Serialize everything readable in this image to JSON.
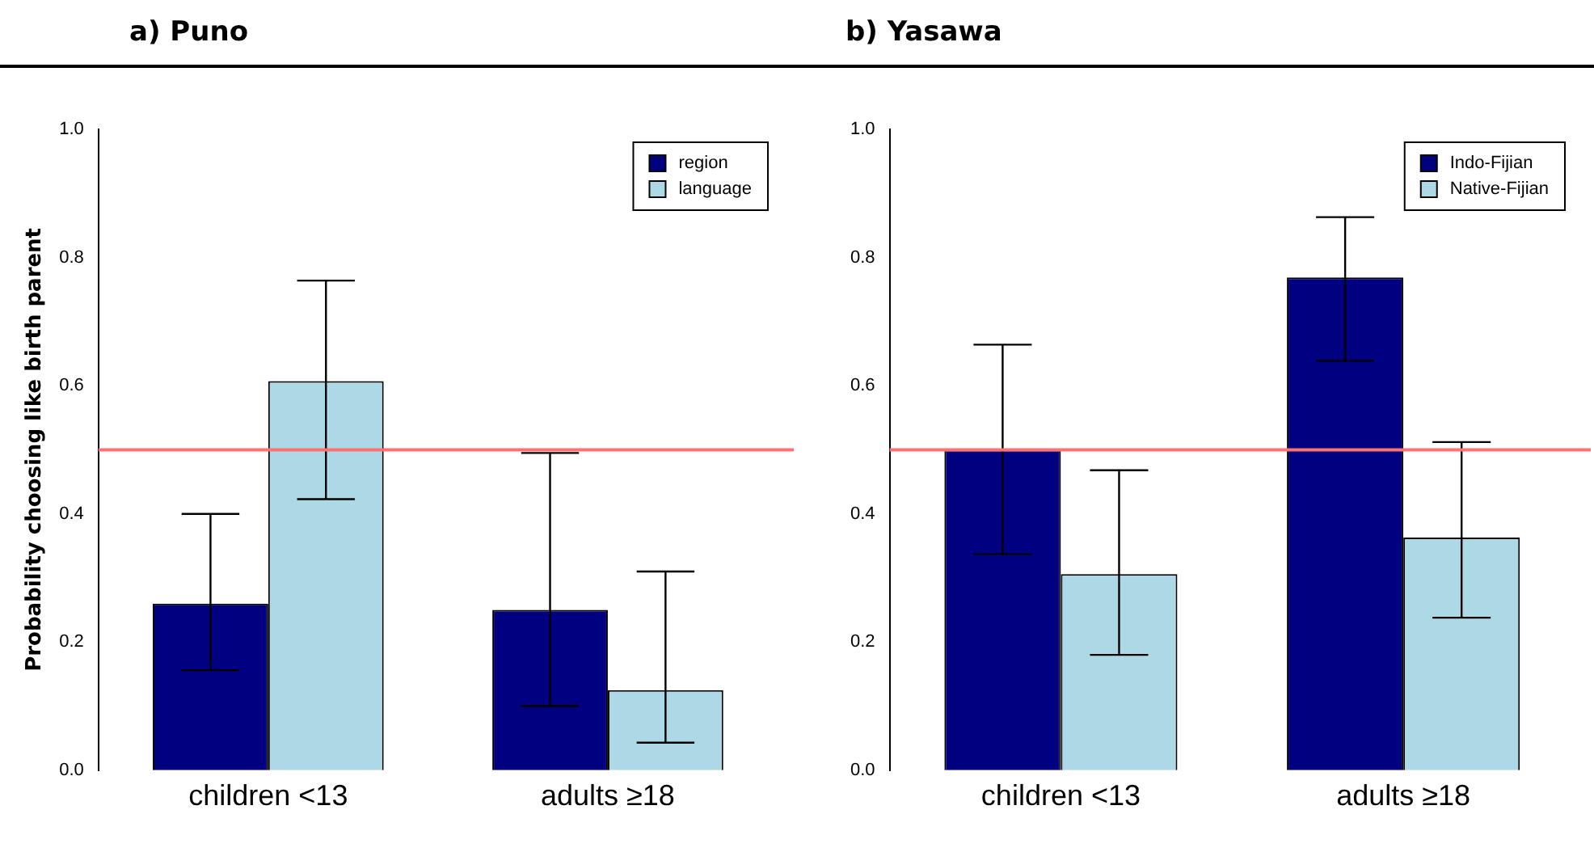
{
  "chart_data": [
    {
      "type": "bar",
      "title": "a) Puno",
      "ylabel": "Probability choosing like birth parent",
      "categories": [
        "children <13",
        "adults ≥18"
      ],
      "series": [
        {
          "name": "region",
          "color": "#000080",
          "values": [
            0.26,
            0.25
          ],
          "errors": [
            [
              0.156,
              0.4
            ],
            [
              0.1,
              0.495
            ]
          ]
        },
        {
          "name": "language",
          "color": "#add8e6",
          "values": [
            0.607,
            0.125
          ],
          "errors": [
            [
              0.423,
              0.764
            ],
            [
              0.043,
              0.31
            ]
          ]
        }
      ],
      "ylim": [
        0,
        1
      ],
      "yticks": [
        "0.0",
        0.2,
        0.4,
        0.6,
        0.8,
        "1.0"
      ],
      "ref_lines": [
        {
          "axis": "y",
          "value": 0.5,
          "color": "#ff7070"
        }
      ],
      "legend": "top right",
      "grid": false
    },
    {
      "type": "bar",
      "title": "b) Yasawa",
      "categories": [
        "children <13",
        "adults ≥18"
      ],
      "series": [
        {
          "name": "Indo-Fijian",
          "color": "#000080",
          "values": [
            0.5,
            0.769
          ],
          "errors": [
            [
              0.337,
              0.664
            ],
            [
              0.639,
              0.863
            ]
          ]
        },
        {
          "name": "Native-Fijian",
          "color": "#add8e6",
          "values": [
            0.306,
            0.363
          ],
          "errors": [
            [
              0.18,
              0.468
            ],
            [
              0.238,
              0.512
            ]
          ]
        }
      ],
      "ylim": [
        0,
        1
      ],
      "yticks": [
        "0.0",
        0.2,
        0.4,
        0.6,
        0.8,
        "1.0"
      ],
      "ref_lines": [
        {
          "axis": "y",
          "value": 0.5,
          "color": "#ff7070"
        }
      ],
      "legend": "top right",
      "grid": false
    }
  ]
}
